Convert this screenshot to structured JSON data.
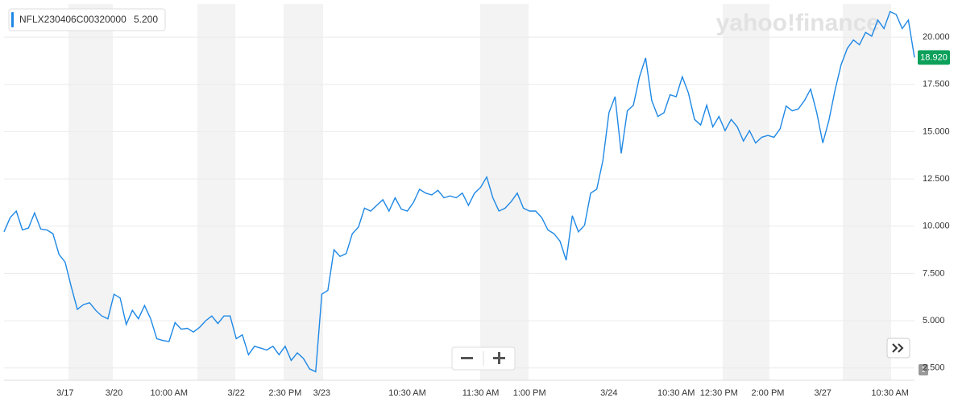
{
  "chart_data": {
    "type": "line",
    "legend_symbol": "NFLX230406C00320000",
    "legend_value": "5.200",
    "logo": "yahoo!finance",
    "last_price_label": "18.920",
    "volume_scale_badge": "1",
    "categories": [
      null,
      null,
      null,
      null,
      null,
      null,
      null,
      null,
      null,
      null,
      "3/17",
      null,
      null,
      null,
      null,
      null,
      null,
      null,
      "3/20",
      null,
      null,
      null,
      null,
      null,
      null,
      null,
      null,
      "10:00 AM",
      null,
      null,
      null,
      null,
      null,
      null,
      null,
      null,
      null,
      null,
      "3/22",
      null,
      null,
      null,
      null,
      null,
      null,
      null,
      "2:30 PM",
      null,
      null,
      null,
      null,
      null,
      "3/23",
      null,
      null,
      null,
      null,
      null,
      null,
      null,
      null,
      null,
      null,
      null,
      null,
      null,
      "10:30 AM",
      null,
      null,
      null,
      null,
      null,
      null,
      null,
      null,
      null,
      null,
      null,
      "11:30 AM",
      null,
      null,
      null,
      null,
      null,
      null,
      null,
      "1:00 PM",
      null,
      null,
      null,
      null,
      null,
      null,
      null,
      null,
      null,
      null,
      null,
      null,
      "3/24",
      null,
      null,
      null,
      null,
      null,
      null,
      null,
      null,
      null,
      null,
      "10:30 AM",
      null,
      null,
      null,
      null,
      null,
      null,
      "12:30 PM",
      null,
      null,
      null,
      null,
      null,
      null,
      null,
      "2:00 PM",
      null,
      null,
      null,
      null,
      null,
      null,
      null,
      null,
      "3/27",
      null,
      null,
      null,
      null,
      null,
      null,
      null,
      null,
      null,
      null,
      "10:30 AM",
      null,
      null,
      null,
      null
    ],
    "series": [
      {
        "name": "NFLX230406C00320000",
        "color": "#1e88e5",
        "values": [
          9.7,
          10.45,
          10.8,
          9.8,
          9.9,
          10.7,
          9.85,
          9.8,
          9.6,
          8.5,
          8.1,
          6.8,
          5.6,
          5.85,
          5.95,
          5.55,
          5.25,
          5.1,
          6.4,
          6.2,
          4.8,
          5.55,
          5.1,
          5.8,
          5.1,
          4.05,
          3.95,
          3.9,
          4.9,
          4.55,
          4.6,
          4.4,
          4.65,
          5.0,
          5.25,
          4.85,
          5.25,
          5.25,
          4.05,
          4.25,
          3.2,
          3.65,
          3.55,
          3.45,
          3.65,
          3.2,
          3.65,
          2.9,
          3.3,
          3.0,
          2.45,
          2.3,
          6.4,
          6.6,
          8.75,
          8.4,
          8.55,
          9.6,
          9.95,
          10.95,
          10.8,
          11.1,
          11.4,
          10.8,
          11.5,
          10.9,
          10.8,
          11.25,
          11.95,
          11.75,
          11.65,
          11.9,
          11.5,
          11.6,
          11.5,
          11.75,
          11.1,
          11.75,
          12.05,
          12.6,
          11.5,
          10.8,
          10.95,
          11.3,
          11.75,
          10.95,
          10.8,
          10.8,
          10.45,
          9.8,
          9.6,
          9.2,
          8.2,
          10.55,
          9.7,
          10.05,
          11.75,
          11.95,
          13.45,
          16.0,
          16.85,
          13.85,
          16.1,
          16.4,
          17.9,
          18.9,
          16.65,
          15.8,
          16.0,
          16.95,
          16.85,
          17.9,
          17.05,
          15.65,
          15.35,
          16.4,
          15.25,
          15.8,
          15.05,
          15.65,
          15.25,
          14.5,
          15.05,
          14.4,
          14.7,
          14.8,
          14.7,
          15.15,
          16.35,
          16.1,
          16.2,
          16.65,
          17.25,
          16.0,
          14.4,
          15.6,
          17.2,
          18.55,
          19.4,
          19.85,
          19.6,
          20.25,
          20.05,
          20.9,
          20.45,
          21.35,
          21.2,
          20.45,
          20.9,
          18.92
        ]
      }
    ],
    "ylim": [
      1.85,
      21.75
    ],
    "yticks": [
      {
        "value": 2.5,
        "label": "2.500"
      },
      {
        "value": 5,
        "label": "5.000"
      },
      {
        "value": 7.5,
        "label": "7.500"
      },
      {
        "value": 10,
        "label": "10.000"
      },
      {
        "value": 12.5,
        "label": "12.500"
      },
      {
        "value": 15,
        "label": "15.000"
      },
      {
        "value": 17.5,
        "label": "17.500"
      },
      {
        "value": 20,
        "label": "20.000"
      }
    ],
    "grid": true
  }
}
